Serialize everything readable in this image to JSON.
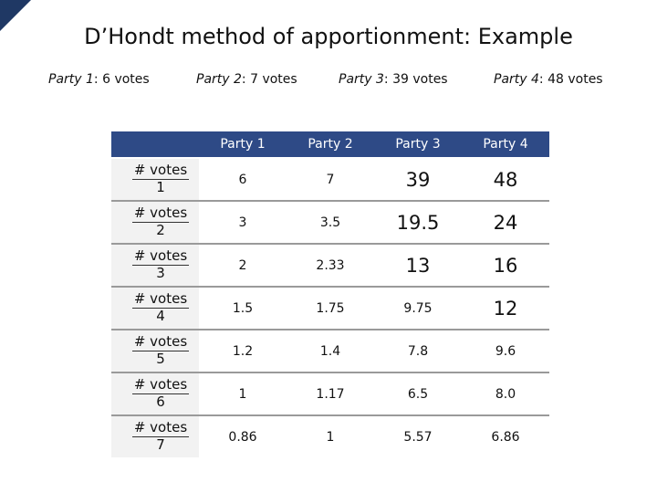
{
  "title": "D’Hondt method of apportionment: Example",
  "party_labels": [
    {
      "name": "Party 1",
      "votes": ":  6 votes"
    },
    {
      "name": "Party 2",
      "votes": ": 7 votes"
    },
    {
      "name": "Party 3",
      "votes": ": 39 votes"
    },
    {
      "name": "Party 4",
      "votes": ": 48 votes"
    }
  ],
  "table": {
    "columns": [
      "Party 1",
      "Party 2",
      "Party 3",
      "Party 4"
    ],
    "rows": [
      {
        "label": "# votes",
        "divisor": "1",
        "cells": [
          "6",
          "7",
          "39",
          "48"
        ]
      },
      {
        "label": "# votes",
        "divisor": "2",
        "cells": [
          "3",
          "3.5",
          "19.5",
          "24"
        ]
      },
      {
        "label": "# votes",
        "divisor": "3",
        "cells": [
          "2",
          "2.33",
          "13",
          "16"
        ]
      },
      {
        "label": "# votes",
        "divisor": "4",
        "cells": [
          "1.5",
          "1.75",
          "9.75",
          "12"
        ]
      },
      {
        "label": "# votes",
        "divisor": "5",
        "cells": [
          "1.2",
          "1.4",
          "7.8",
          "9.6"
        ]
      },
      {
        "label": "# votes",
        "divisor": "6",
        "cells": [
          "1",
          "1.17",
          "6.5",
          "8.0"
        ]
      },
      {
        "label": "# votes",
        "divisor": "7",
        "cells": [
          "0.86",
          "1",
          "5.57",
          "6.86"
        ]
      }
    ]
  }
}
